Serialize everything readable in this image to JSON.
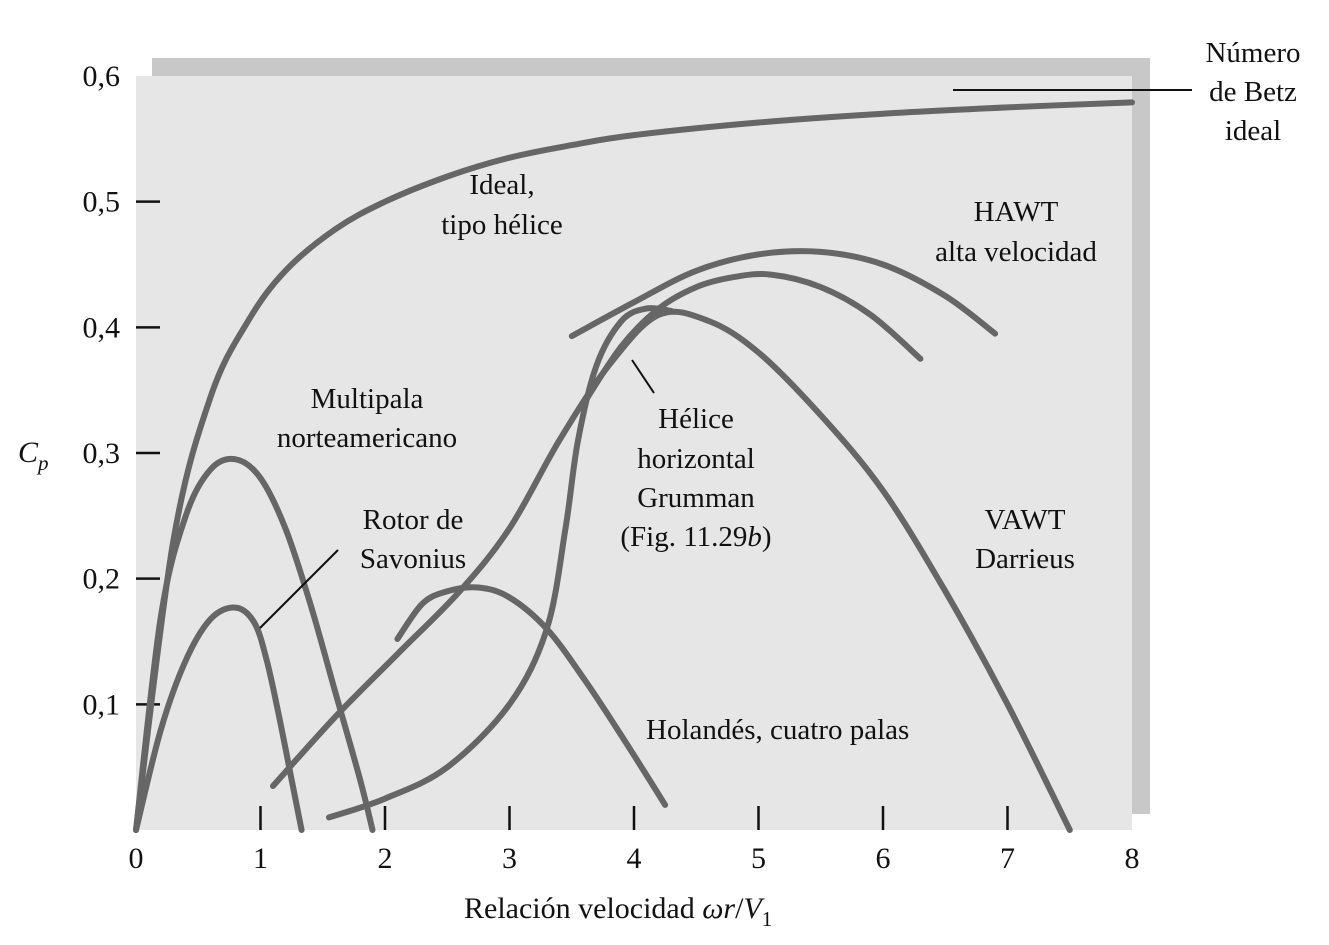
{
  "chart_data": {
    "type": "line",
    "xlabel": "Relación velocidad ωr/V₁",
    "ylabel": "Cp",
    "xlim": [
      0,
      8
    ],
    "ylim": [
      0,
      0.6
    ],
    "x_ticks": [
      "0",
      "1",
      "2",
      "3",
      "4",
      "5",
      "6",
      "7",
      "8"
    ],
    "y_ticks": [
      "0,1",
      "0,2",
      "0,3",
      "0,4",
      "0,5",
      "0,6"
    ],
    "grid": false,
    "background": "#e6e6e6",
    "shadow_color": "#c8c8c8",
    "curve_color": "#666666",
    "series": [
      {
        "id": "ideal",
        "x": [
          0,
          0.3,
          0.6,
          0.9,
          1.2,
          1.6,
          2,
          2.5,
          3,
          3.5,
          4,
          5,
          6,
          7,
          8
        ],
        "y": [
          0,
          0.23,
          0.345,
          0.405,
          0.445,
          0.478,
          0.5,
          0.52,
          0.535,
          0.545,
          0.553,
          0.563,
          0.57,
          0.575,
          0.579
        ]
      },
      {
        "id": "multipala",
        "x": [
          0,
          0.2,
          0.4,
          0.6,
          0.8,
          1.0,
          1.2,
          1.4,
          1.6,
          1.8,
          1.9
        ],
        "y": [
          0,
          0.17,
          0.25,
          0.287,
          0.295,
          0.28,
          0.24,
          0.18,
          0.11,
          0.04,
          0
        ]
      },
      {
        "id": "savonius",
        "x": [
          0,
          0.2,
          0.4,
          0.6,
          0.8,
          0.95,
          1.05,
          1.15,
          1.25,
          1.33
        ],
        "y": [
          0,
          0.08,
          0.135,
          0.168,
          0.177,
          0.165,
          0.135,
          0.09,
          0.04,
          0
        ]
      },
      {
        "id": "holandes",
        "x": [
          2.1,
          2.3,
          2.5,
          2.75,
          3.0,
          3.3,
          3.6,
          3.9,
          4.25
        ],
        "y": [
          0.152,
          0.18,
          0.19,
          0.193,
          0.185,
          0.16,
          0.12,
          0.075,
          0.02
        ]
      },
      {
        "id": "grumman",
        "x": [
          1.55,
          2.0,
          2.5,
          3.0,
          3.3,
          3.45,
          3.55,
          3.7,
          3.9,
          4.1,
          4.3
        ],
        "y": [
          0.01,
          0.025,
          0.05,
          0.1,
          0.16,
          0.24,
          0.31,
          0.37,
          0.405,
          0.415,
          0.413
        ]
      },
      {
        "id": "vawt",
        "x": [
          1.1,
          1.6,
          2.1,
          2.6,
          3.0,
          3.4,
          3.8,
          4.2,
          4.6,
          5.0,
          5.5,
          6.0,
          6.5,
          7.0,
          7.5
        ],
        "y": [
          0.035,
          0.09,
          0.14,
          0.19,
          0.24,
          0.31,
          0.37,
          0.41,
          0.405,
          0.38,
          0.33,
          0.27,
          0.19,
          0.1,
          0
        ]
      },
      {
        "id": "hawt-a",
        "x": [
          3.5,
          4.0,
          4.5,
          5.0,
          5.5,
          6.0,
          6.5,
          6.9
        ],
        "y": [
          0.393,
          0.42,
          0.445,
          0.458,
          0.46,
          0.45,
          0.425,
          0.395
        ]
      },
      {
        "id": "hawt-b",
        "x": [
          3.6,
          3.9,
          4.2,
          4.5,
          4.8,
          5.1,
          5.5,
          5.9,
          6.3
        ],
        "y": [
          0.34,
          0.385,
          0.415,
          0.432,
          0.44,
          0.442,
          0.432,
          0.41,
          0.375
        ]
      }
    ],
    "annotations": {
      "ideal": [
        "Ideal,",
        "tipo hélice"
      ],
      "betz": [
        "Número",
        "de Betz",
        "ideal"
      ],
      "hawt": [
        "HAWT",
        "alta velocidad"
      ],
      "multipala": [
        "Multipala",
        "norteamericano"
      ],
      "savonius": [
        "Rotor de",
        "Savonius"
      ],
      "grumman": [
        "Hélice",
        "horizontal",
        "Grumman",
        "(Fig. 11.29",
        "b",
        ")"
      ],
      "vawt": [
        "VAWT",
        "Darrieus"
      ],
      "holandes": [
        "Holandés, cuatro palas"
      ]
    }
  }
}
